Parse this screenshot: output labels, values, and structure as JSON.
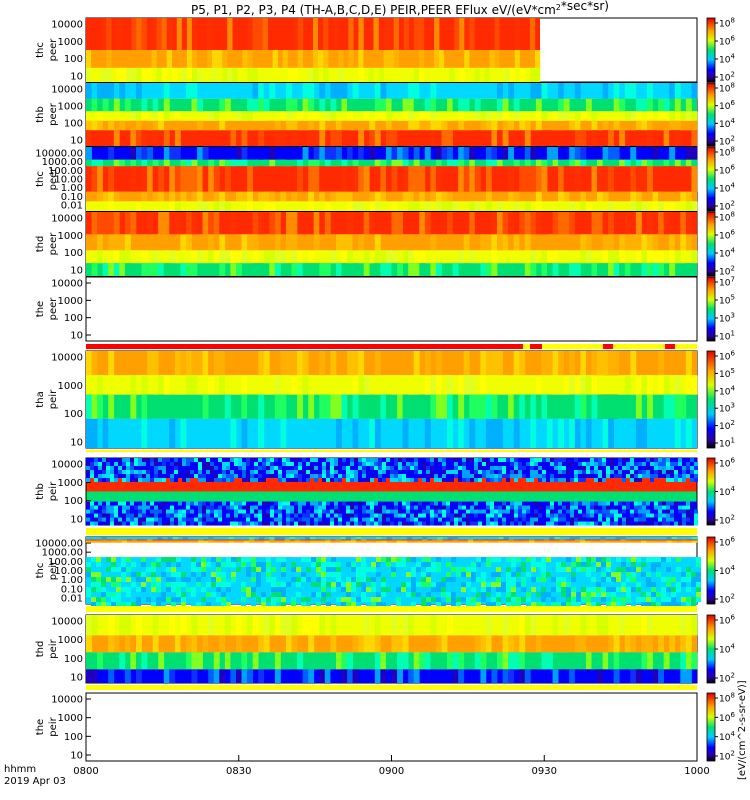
{
  "chart_data": {
    "type": "heatmap",
    "title": "P5, P1, P2, P3, P4 (TH-A,B,C,D,E) PEIR,PEER EFlux eV/(eV*cm^2*sec*sr)",
    "x_ticks": [
      "0800",
      "0830",
      "0900",
      "0930",
      "1000"
    ],
    "x_range": [
      "0800",
      "1000"
    ],
    "x_label_left": "hhmm",
    "date_label": "2019 Apr 03",
    "colorbar_label": "[eV/(cm^2-s-sr-eV)]",
    "colorbar_label_full": "eV/(eV*cm^2*sec*sr)",
    "panels": [
      {
        "label1": "thc",
        "label2": "peer",
        "yticks": [
          "10000",
          "1000",
          "100",
          "10"
        ],
        "cticks": [
          "10^8",
          "10^6",
          "10^4",
          "10^2"
        ]
      },
      {
        "label1": "thb",
        "label2": "peer",
        "yticks": [
          "10000",
          "1000",
          "100",
          "10"
        ],
        "cticks": [
          "10^8",
          "10^6",
          "10^4",
          "10^2"
        ]
      },
      {
        "label1": "thc",
        "label2": "peer",
        "yticks": [
          "10000.00",
          "1000.00",
          "100.00",
          "10.00",
          "1.00",
          "0.10",
          "0.01"
        ],
        "cticks": [
          "10^8",
          "10^6",
          "10^4",
          "10^2"
        ]
      },
      {
        "label1": "thd",
        "label2": "peer",
        "yticks": [
          "10000",
          "1000",
          "100",
          "10"
        ],
        "cticks": [
          "10^8",
          "10^6",
          "10^4",
          "10^2"
        ]
      },
      {
        "label1": "the",
        "label2": "peer",
        "yticks": [
          "10000",
          "1000",
          "100",
          "10"
        ],
        "cticks": [
          "10^7",
          "10^5",
          "10^3",
          "10^1"
        ]
      },
      {
        "label1": "tha",
        "label2": "peir",
        "yticks": [
          "10000",
          "1000",
          "100",
          "10"
        ],
        "cticks": [
          "10^6",
          "10^5",
          "10^4",
          "10^3",
          "10^2",
          "10^1"
        ]
      },
      {
        "label1": "thb",
        "label2": "peir",
        "yticks": [
          "10000",
          "1000",
          "100",
          "10"
        ],
        "cticks": [
          "10^6",
          "10^4",
          "10^2"
        ]
      },
      {
        "label1": "thc",
        "label2": "peir",
        "yticks": [
          "10000.00",
          "1000.00",
          "100.00",
          "10.00",
          "1.00",
          "0.10",
          "0.01"
        ],
        "cticks": [
          "10^6",
          "10^4",
          "10^2"
        ]
      },
      {
        "label1": "thd",
        "label2": "peir",
        "yticks": [
          "10000",
          "1000",
          "100",
          "10"
        ],
        "cticks": [
          "10^6",
          "10^4",
          "10^2"
        ]
      },
      {
        "label1": "the",
        "label2": "peir",
        "yticks": [
          "10000",
          "1000",
          "100",
          "10"
        ],
        "cticks": [
          "10^8",
          "10^6",
          "10^4",
          "10^2"
        ]
      }
    ]
  }
}
